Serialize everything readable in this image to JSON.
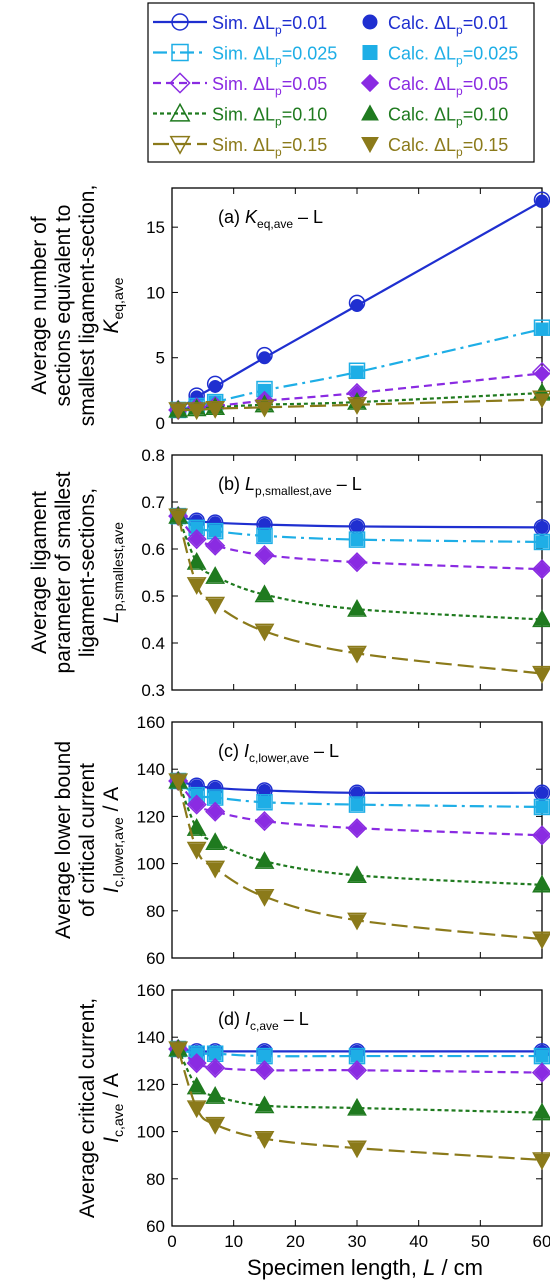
{
  "legend": {
    "entries": [
      {
        "sim": "Sim. ΔL",
        "calc": "Calc. ΔL",
        "sub": "p",
        "val": "=0.01",
        "color": "#1f2fd0",
        "marker": "circle",
        "dash": ""
      },
      {
        "sim": "Sim. ΔL",
        "calc": "Calc. ΔL",
        "sub": "p",
        "val": "=0.025",
        "color": "#1eaee6",
        "marker": "square",
        "dash": "14,5,3,5"
      },
      {
        "sim": "Sim. ΔL",
        "calc": "Calc. ΔL",
        "sub": "p",
        "val": "=0.05",
        "color": "#8a2be2",
        "marker": "diamond",
        "dash": "8,5"
      },
      {
        "sim": "Sim. ΔL",
        "calc": "Calc. ΔL",
        "sub": "p",
        "val": "=0.10",
        "color": "#1f7a1f",
        "marker": "triangle",
        "dash": "4,3"
      },
      {
        "sim": "Sim. ΔL",
        "calc": "Calc. ΔL",
        "sub": "p",
        "val": "=0.15",
        "color": "#8b7a1a",
        "marker": "triangle-down",
        "dash": "16,6"
      }
    ]
  },
  "xaxis": {
    "label_main": "Specimen length, ",
    "label_var": "L",
    "label_unit": " / cm",
    "ticks": [
      0,
      10,
      20,
      30,
      40,
      50,
      60
    ],
    "range": [
      0,
      60
    ]
  },
  "chart_data": [
    {
      "type": "line",
      "panel": "a",
      "title": {
        "prefix": "(a) ",
        "var": "K",
        "sub": "eq,ave",
        "suffix": " – L"
      },
      "ylabel_lines": [
        "Average number of",
        "sections equivalent to",
        "smallest ligament-section,"
      ],
      "ylabel_var": {
        "main": "K",
        "sub": "eq,ave"
      },
      "ylim": [
        0,
        18
      ],
      "yticks": [
        0,
        5,
        10,
        15
      ],
      "x": [
        1,
        4,
        7,
        15,
        30,
        60
      ],
      "series": [
        {
          "name": "ΔLp=0.01",
          "sim": [
            1.0,
            2.1,
            3.0,
            5.2,
            9.2,
            17.1
          ],
          "calc": [
            1.0,
            2.0,
            2.8,
            5.0,
            9.0,
            17.0
          ]
        },
        {
          "name": "ΔLp=0.025",
          "sim": [
            1.0,
            1.3,
            1.6,
            2.6,
            4.0,
            7.3
          ],
          "calc": [
            1.0,
            1.3,
            1.6,
            2.5,
            3.9,
            7.2
          ]
        },
        {
          "name": "ΔLp=0.05",
          "sim": [
            1.0,
            1.2,
            1.3,
            1.7,
            2.3,
            3.9
          ],
          "calc": [
            1.0,
            1.2,
            1.3,
            1.7,
            2.3,
            3.8
          ]
        },
        {
          "name": "ΔLp=0.10",
          "sim": [
            1.0,
            1.1,
            1.2,
            1.4,
            1.6,
            2.3
          ],
          "calc": [
            1.0,
            1.1,
            1.2,
            1.4,
            1.6,
            2.3
          ]
        },
        {
          "name": "ΔLp=0.15",
          "sim": [
            1.0,
            1.0,
            1.1,
            1.2,
            1.4,
            1.9
          ],
          "calc": [
            1.0,
            1.0,
            1.1,
            1.2,
            1.4,
            1.8
          ]
        }
      ]
    },
    {
      "type": "line",
      "panel": "b",
      "title": {
        "prefix": "(b) ",
        "var": "L",
        "sub": "p,smallest,ave",
        "suffix": " – L"
      },
      "ylabel_lines": [
        "Average ligament",
        "parameter of smallest",
        "ligament-sections,"
      ],
      "ylabel_var": {
        "main": "L",
        "sub": "p,smallest,ave"
      },
      "ylim": [
        0.3,
        0.8
      ],
      "yticks": [
        0.3,
        0.4,
        0.5,
        0.6,
        0.7,
        0.8
      ],
      "x": [
        1,
        4,
        7,
        15,
        30,
        60
      ],
      "series": [
        {
          "name": "ΔLp=0.01",
          "sim": [
            0.67,
            0.66,
            0.656,
            0.652,
            0.648,
            0.646
          ],
          "calc": [
            0.67,
            0.66,
            0.656,
            0.652,
            0.648,
            0.646
          ]
        },
        {
          "name": "ΔLp=0.025",
          "sim": [
            0.67,
            0.645,
            0.638,
            0.628,
            0.62,
            0.615
          ],
          "calc": [
            0.67,
            0.645,
            0.638,
            0.628,
            0.62,
            0.615
          ]
        },
        {
          "name": "ΔLp=0.05",
          "sim": [
            0.67,
            0.621,
            0.607,
            0.587,
            0.572,
            0.557
          ],
          "calc": [
            0.67,
            0.621,
            0.607,
            0.587,
            0.572,
            0.557
          ]
        },
        {
          "name": "ΔLp=0.10",
          "sim": [
            0.67,
            0.572,
            0.542,
            0.503,
            0.472,
            0.45
          ],
          "calc": [
            0.67,
            0.572,
            0.542,
            0.503,
            0.472,
            0.45
          ]
        },
        {
          "name": "ΔLp=0.15",
          "sim": [
            0.67,
            0.524,
            0.482,
            0.425,
            0.378,
            0.335
          ],
          "calc": [
            0.67,
            0.524,
            0.482,
            0.425,
            0.378,
            0.335
          ]
        }
      ]
    },
    {
      "type": "line",
      "panel": "c",
      "title": {
        "prefix": "(c) ",
        "var": "I",
        "sub": "c,lower,ave",
        "suffix": " – L"
      },
      "ylabel_lines": [
        "Average lower bound",
        "of critical current"
      ],
      "ylabel_var": {
        "main": "I",
        "sub": "c,lower,ave",
        "tail": " / A"
      },
      "ylim": [
        60,
        160
      ],
      "yticks": [
        60,
        80,
        100,
        120,
        140,
        160
      ],
      "x": [
        1,
        4,
        7,
        15,
        30,
        60
      ],
      "series": [
        {
          "name": "ΔLp=0.01",
          "sim": [
            135,
            133,
            132,
            131,
            130,
            130
          ],
          "calc": [
            135,
            133,
            132,
            131,
            130,
            130
          ]
        },
        {
          "name": "ΔLp=0.025",
          "sim": [
            135,
            129,
            128,
            126,
            125,
            124
          ],
          "calc": [
            135,
            129,
            128,
            126,
            125,
            124
          ]
        },
        {
          "name": "ΔLp=0.05",
          "sim": [
            135,
            125,
            122,
            118,
            115,
            112
          ],
          "calc": [
            135,
            125,
            122,
            118,
            115,
            112
          ]
        },
        {
          "name": "ΔLp=0.10",
          "sim": [
            135,
            115,
            109,
            101,
            95,
            91
          ],
          "calc": [
            135,
            115,
            109,
            101,
            95,
            91
          ]
        },
        {
          "name": "ΔLp=0.15",
          "sim": [
            135,
            106,
            98,
            86,
            76,
            68
          ],
          "calc": [
            135,
            106,
            98,
            86,
            76,
            68
          ]
        }
      ]
    },
    {
      "type": "line",
      "panel": "d",
      "title": {
        "prefix": "(d) ",
        "var": "I",
        "sub": "c,ave",
        "suffix": " – L"
      },
      "ylabel_lines": [
        "Average critical current,"
      ],
      "ylabel_var": {
        "main": "I",
        "sub": "c,ave",
        "tail": " / A"
      },
      "ylim": [
        60,
        160
      ],
      "yticks": [
        60,
        80,
        100,
        120,
        140,
        160
      ],
      "x": [
        1,
        4,
        7,
        15,
        30,
        60
      ],
      "series": [
        {
          "name": "ΔLp=0.01",
          "sim": [
            135,
            134,
            134,
            134,
            134,
            134
          ],
          "calc": [
            135,
            134,
            134,
            134,
            134,
            134
          ]
        },
        {
          "name": "ΔLp=0.025",
          "sim": [
            135,
            133,
            133,
            132,
            132,
            132
          ],
          "calc": [
            135,
            133,
            133,
            132,
            132,
            132
          ]
        },
        {
          "name": "ΔLp=0.05",
          "sim": [
            135,
            129,
            127,
            126,
            126,
            125
          ],
          "calc": [
            135,
            129,
            127,
            126,
            126,
            125
          ]
        },
        {
          "name": "ΔLp=0.10",
          "sim": [
            135,
            119,
            115,
            111,
            110,
            108
          ],
          "calc": [
            135,
            119,
            115,
            111,
            110,
            108
          ]
        },
        {
          "name": "ΔLp=0.15",
          "sim": [
            135,
            110,
            103,
            97,
            93,
            88
          ],
          "calc": [
            135,
            110,
            103,
            97,
            93,
            88
          ]
        }
      ]
    }
  ]
}
